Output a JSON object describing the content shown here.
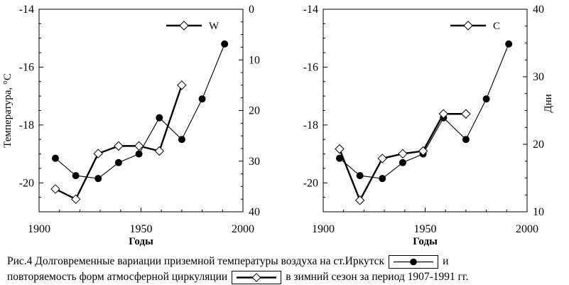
{
  "chart_data": [
    {
      "type": "line",
      "xlabel": "Годы",
      "ylabel": "Температура, °C",
      "y2label": "",
      "xlim": [
        1900,
        2000
      ],
      "ylim": [
        -21,
        -14
      ],
      "y2lim": [
        40,
        0
      ],
      "y2_inverted": true,
      "xticks": [
        "1900",
        "1950",
        "2000"
      ],
      "yticks": [
        "-14",
        "-16",
        "-18",
        "-20"
      ],
      "y2ticks": [
        "0",
        "10",
        "20",
        "30",
        "40"
      ],
      "legend": "top-right",
      "legend_label": "W",
      "series": [
        {
          "axis": "y",
          "marker": "filled-circle",
          "x": [
            1908,
            1918,
            1929,
            1939,
            1949,
            1959,
            1970,
            1980,
            1991
          ],
          "y": [
            -19.15,
            -19.75,
            -19.85,
            -19.3,
            -19.0,
            -17.75,
            -18.5,
            -17.1,
            -15.2
          ]
        },
        {
          "axis": "y2",
          "name": "W",
          "marker": "open-diamond",
          "x": [
            1908,
            1918,
            1929,
            1939,
            1949,
            1959,
            1970
          ],
          "y": [
            35.5,
            37.5,
            28.5,
            27,
            27,
            28,
            15
          ]
        }
      ]
    },
    {
      "type": "line",
      "xlabel": "Годы",
      "ylabel": "",
      "y2label": "Дни",
      "xlim": [
        1900,
        2000
      ],
      "ylim": [
        -21,
        -14
      ],
      "y2lim": [
        10,
        40
      ],
      "xticks": [
        "1900",
        "1950",
        "2000"
      ],
      "yticks": [
        "-14",
        "-16",
        "-18",
        "-20"
      ],
      "y2ticks": [
        "10",
        "20",
        "30",
        "40"
      ],
      "legend": "top-right",
      "legend_label": "C",
      "series": [
        {
          "axis": "y",
          "marker": "filled-circle",
          "x": [
            1908,
            1918,
            1929,
            1939,
            1949,
            1959,
            1970,
            1980,
            1991
          ],
          "y": [
            -19.15,
            -19.75,
            -19.85,
            -19.3,
            -19.0,
            -17.75,
            -18.5,
            -17.1,
            -15.2
          ]
        },
        {
          "axis": "y2",
          "name": "C",
          "marker": "open-diamond",
          "x": [
            1908,
            1918,
            1929,
            1939,
            1949,
            1959,
            1970
          ],
          "y": [
            19.3,
            11.7,
            17.9,
            18.6,
            19.0,
            24.5,
            24.5
          ]
        }
      ]
    }
  ],
  "caption": {
    "line1_a": "Рис.4 Долговременные вариации приземной температуры воздуха на ст.Иркутск",
    "line1_b": "и",
    "line2_a": "повторяемость форм атмосферной циркуляции",
    "line2_b": "в зимний сезон за период 1907-1991 гг."
  }
}
